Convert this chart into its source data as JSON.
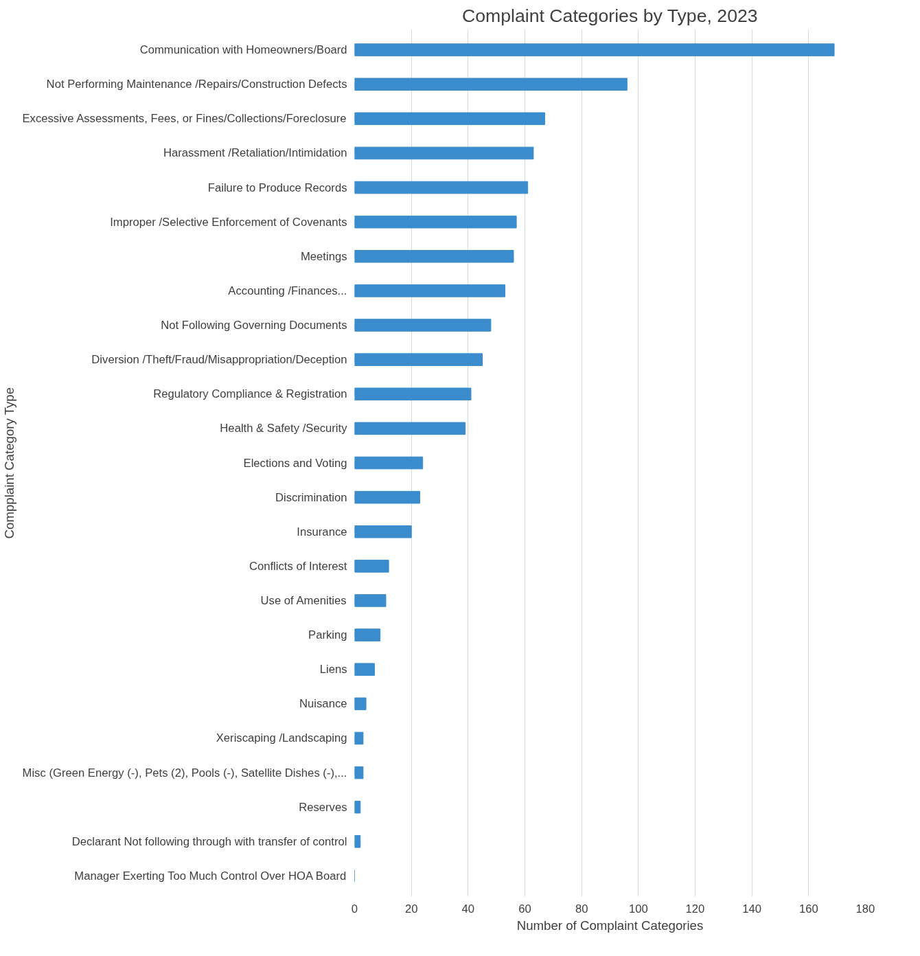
{
  "chart_data": {
    "type": "bar",
    "orientation": "horizontal",
    "title": "Complaint Categories by Type, 2023",
    "xlabel": "Number of Complaint Categories",
    "ylabel": "Compplaint Category Type",
    "categories": [
      "Communication with Homeowners/Board",
      "Not Performing Maintenance /Repairs/Construction Defects",
      "Excessive Assessments, Fees, or Fines/Collections/Foreclosure",
      "Harassment /Retaliation/Intimidation",
      "Failure to Produce Records",
      "Improper /Selective Enforcement of Covenants",
      "Meetings",
      "Accounting /Finances...",
      "Not Following Governing Documents",
      "Diversion /Theft/Fraud/Misappropriation/Deception",
      "Regulatory Compliance & Registration",
      "Health & Safety /Security",
      "Elections and Voting",
      "Discrimination",
      "Insurance",
      "Conflicts of Interest",
      "Use of Amenities",
      "Parking",
      "Liens",
      "Nuisance",
      "Xeriscaping /Landscaping",
      "Misc (Green Energy (-), Pets (2), Pools (-), Satellite Dishes (-),...",
      "Reserves",
      "Declarant Not following through with transfer of control",
      "Manager Exerting Too Much Control Over HOA Board"
    ],
    "values": [
      169,
      96,
      67,
      63,
      61,
      57,
      56,
      53,
      48,
      45,
      41,
      39,
      24,
      23,
      20,
      12,
      11,
      9,
      7,
      4,
      3,
      3,
      2,
      2,
      0
    ],
    "color": "#3a8ccd",
    "xlim": [
      0,
      180
    ],
    "xticks": [
      0,
      20,
      40,
      60,
      80,
      100,
      120,
      140,
      160,
      180
    ],
    "grid": "x"
  }
}
